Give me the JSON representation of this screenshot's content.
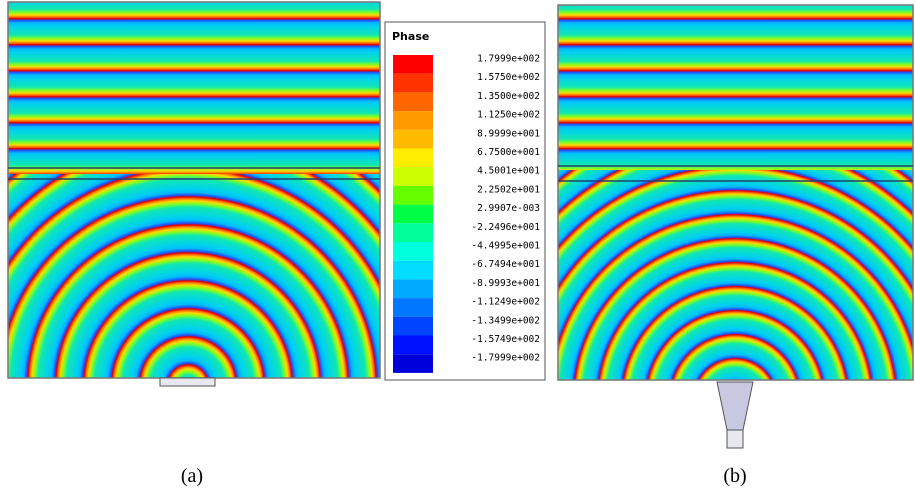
{
  "legend": {
    "title": "Phase",
    "entries": [
      {
        "label": "1.7999e+002",
        "color": "#ff0000"
      },
      {
        "label": "1.5750e+002",
        "color": "#ff3300"
      },
      {
        "label": "1.3500e+002",
        "color": "#ff6600"
      },
      {
        "label": "1.1250e+002",
        "color": "#ff9900"
      },
      {
        "label": "8.9999e+001",
        "color": "#ffbb00"
      },
      {
        "label": "6.7500e+001",
        "color": "#ffee00"
      },
      {
        "label": "4.5001e+001",
        "color": "#ccff00"
      },
      {
        "label": "2.2502e+001",
        "color": "#66ff00"
      },
      {
        "label": "2.9907e-003",
        "color": "#00ff44"
      },
      {
        "label": "-2.2496e+001",
        "color": "#00ff99"
      },
      {
        "label": "-4.4995e+001",
        "color": "#00ffdd"
      },
      {
        "label": "-6.7494e+001",
        "color": "#00ddff"
      },
      {
        "label": "-8.9993e+001",
        "color": "#00aaff"
      },
      {
        "label": "-1.1249e+002",
        "color": "#0077ff"
      },
      {
        "label": "-1.3499e+002",
        "color": "#0044ff"
      },
      {
        "label": "-1.5749e+002",
        "color": "#0011ff"
      },
      {
        "label": "-1.7999e+002",
        "color": "#0000dd"
      }
    ]
  },
  "panels": [
    {
      "caption": "(a)"
    },
    {
      "caption": "(b)"
    }
  ]
}
